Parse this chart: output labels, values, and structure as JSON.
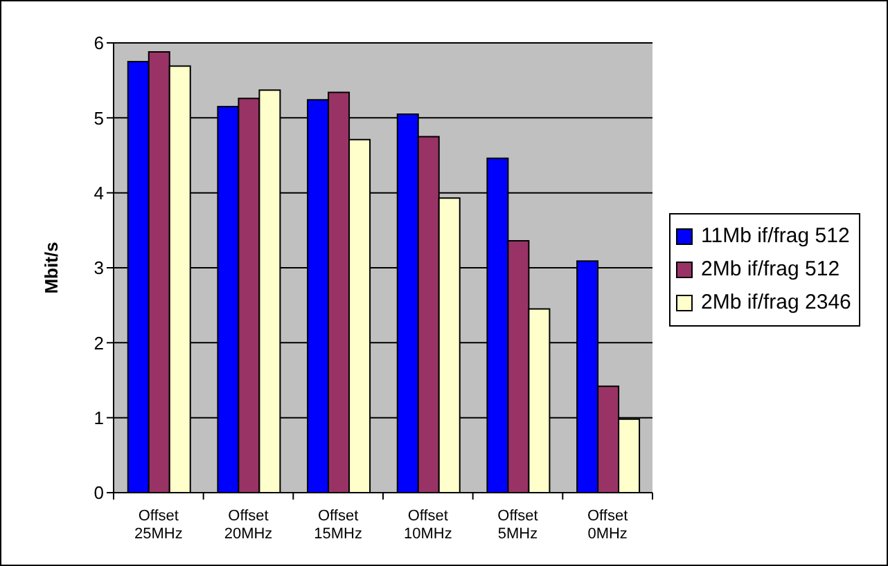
{
  "chart_data": {
    "type": "bar",
    "ylabel": "Mbit/s",
    "categories": [
      "Offset 25MHz",
      "Offset 20MHz",
      "Offset 15MHz",
      "Offset 10MHz",
      "Offset 5MHz",
      "Offset 0MHz"
    ],
    "series": [
      {
        "name": "11Mb if/frag 512",
        "color": "#0000ff",
        "values": [
          5.75,
          5.15,
          5.24,
          5.05,
          4.46,
          3.09
        ]
      },
      {
        "name": "2Mb if/frag 512",
        "color": "#993366",
        "values": [
          5.88,
          5.26,
          5.34,
          4.75,
          3.36,
          1.42
        ]
      },
      {
        "name": "2Mb if/frag 2346",
        "color": "#ffffcc",
        "values": [
          5.69,
          5.37,
          4.71,
          3.93,
          2.45,
          0.98
        ]
      }
    ],
    "ylim": [
      0,
      6
    ],
    "yticks": [
      0,
      1,
      2,
      3,
      4,
      5,
      6
    ],
    "grid": "y",
    "legend": "right"
  }
}
